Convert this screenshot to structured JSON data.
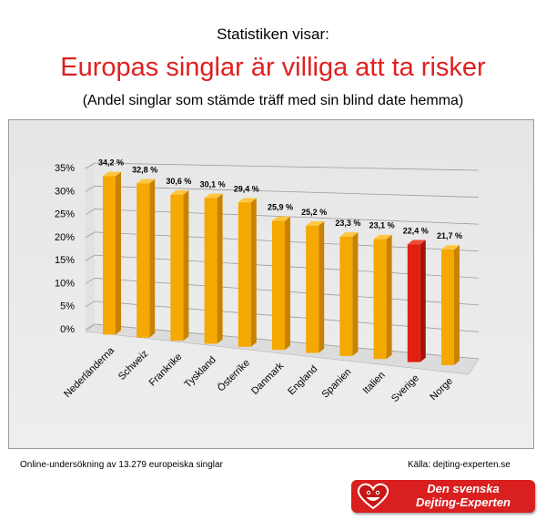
{
  "header": {
    "pre_title": "Statistiken visar:",
    "title": "Europas singlar är villiga att ta risker",
    "subtitle": "(Andel singlar som stämde träff med sin blind date hemma)"
  },
  "chart_data": {
    "type": "bar",
    "categories": [
      "Nederländerna",
      "Schweiz",
      "Frankrike",
      "Tyskland",
      "Österrike",
      "Danmark",
      "England",
      "Spanien",
      "Italien",
      "Sverige",
      "Norge"
    ],
    "values": [
      34.2,
      32.8,
      30.6,
      30.1,
      29.4,
      25.9,
      25.2,
      23.3,
      23.1,
      22.4,
      21.7
    ],
    "value_labels": [
      "34,2 %",
      "32,8 %",
      "30,6 %",
      "30,1 %",
      "29,4 %",
      "25,9 %",
      "25,2 %",
      "23,3 %",
      "23,1 %",
      "22,4 %",
      "21,7 %"
    ],
    "y_ticks": [
      "0%",
      "5%",
      "10%",
      "15%",
      "20%",
      "25%",
      "30%",
      "35%"
    ],
    "ylim": [
      0,
      35
    ],
    "grid": true,
    "bar_color": "#f5a800",
    "highlight_color": "#e02010",
    "highlight_category": "Sverige"
  },
  "footer": {
    "left": "Online-undersökning av 13.279 europeiska singlar",
    "right": "Källa: dejting-experten.se"
  },
  "logo": {
    "line1": "Den svenska",
    "line2": "Dejting-Experten",
    "icon": "heart-face-icon"
  }
}
